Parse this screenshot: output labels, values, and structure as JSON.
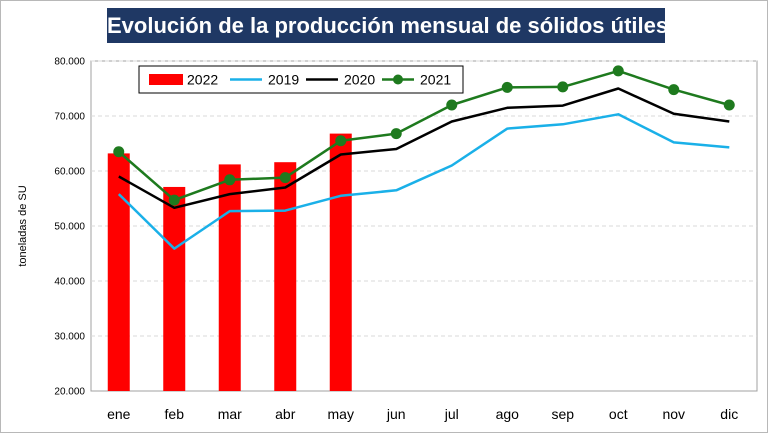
{
  "chart_data": {
    "type": "bar+line",
    "title": "Evolución de la producción mensual de sólidos útiles",
    "ylabel": "toneladas de SU",
    "xlabel": "",
    "ylim": [
      20000,
      80000
    ],
    "yticks": [
      "20.000",
      "30.000",
      "40.000",
      "50.000",
      "60.000",
      "70.000",
      "80.000"
    ],
    "categories": [
      "ene",
      "feb",
      "mar",
      "abr",
      "may",
      "jun",
      "jul",
      "ago",
      "sep",
      "oct",
      "nov",
      "dic"
    ],
    "grid": true,
    "legend_position": "top-left",
    "series": [
      {
        "name": "2022",
        "kind": "bar",
        "color": "#ff0000",
        "values": [
          63200,
          57100,
          61200,
          61600,
          66800,
          null,
          null,
          null,
          null,
          null,
          null,
          null
        ]
      },
      {
        "name": "2019",
        "kind": "line",
        "color": "#1ab0e8",
        "values": [
          55800,
          45900,
          52700,
          52800,
          55500,
          56500,
          61000,
          67700,
          68500,
          70300,
          65200,
          64300
        ]
      },
      {
        "name": "2020",
        "kind": "line",
        "color": "#000000",
        "values": [
          59000,
          53300,
          55800,
          57000,
          63000,
          64000,
          69000,
          71500,
          71900,
          75000,
          70400,
          69000
        ]
      },
      {
        "name": "2021",
        "kind": "line-marker",
        "color": "#1e7a1e",
        "values": [
          63500,
          54700,
          58400,
          58800,
          65500,
          66800,
          72000,
          75200,
          75300,
          78200,
          74800,
          72000
        ]
      }
    ]
  }
}
